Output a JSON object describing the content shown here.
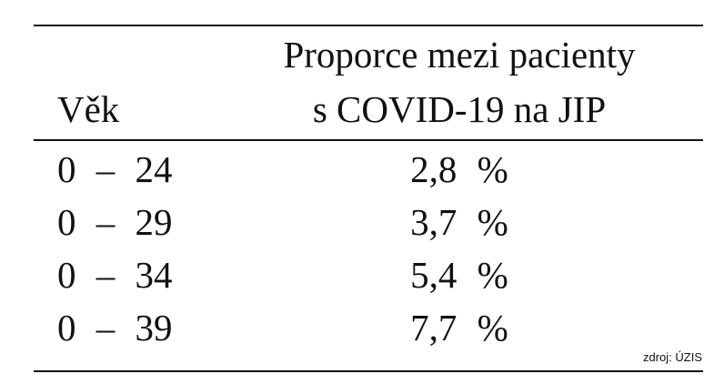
{
  "table": {
    "header": {
      "age": "Věk",
      "proportion": [
        "Proporce mezi pacienty",
        "s COVID-19 na JIP"
      ]
    },
    "rows": [
      [
        "0 – 24",
        "2,8 %"
      ],
      [
        "0 – 29",
        "3,7 %"
      ],
      [
        "0 – 34",
        "5,4 %"
      ],
      [
        "0 – 39",
        "7,7 %"
      ]
    ]
  },
  "source": "zdroj: ÚZIS"
}
